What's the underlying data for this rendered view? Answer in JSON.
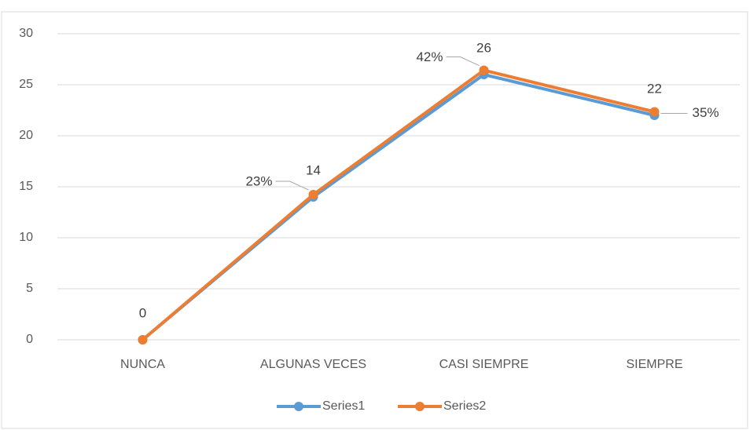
{
  "chart_data": {
    "type": "line",
    "stacked": true,
    "categories": [
      "NUNCA",
      "ALGUNAS VECES",
      "CASI SIEMPRE",
      "SIEMPRE"
    ],
    "series": [
      {
        "name": "Series1",
        "color": "#5b9bd5",
        "values": [
          0,
          14,
          26,
          22
        ]
      },
      {
        "name": "Series2",
        "color": "#ed7d31",
        "values": [
          0,
          0.23,
          0.42,
          0.35
        ],
        "value_labels": [
          null,
          "23%",
          "42%",
          "35%"
        ]
      }
    ],
    "ylim": [
      0,
      30
    ],
    "yticks": [
      0,
      5,
      10,
      15,
      20,
      25,
      30
    ],
    "grid": true,
    "legend": "bottom"
  }
}
